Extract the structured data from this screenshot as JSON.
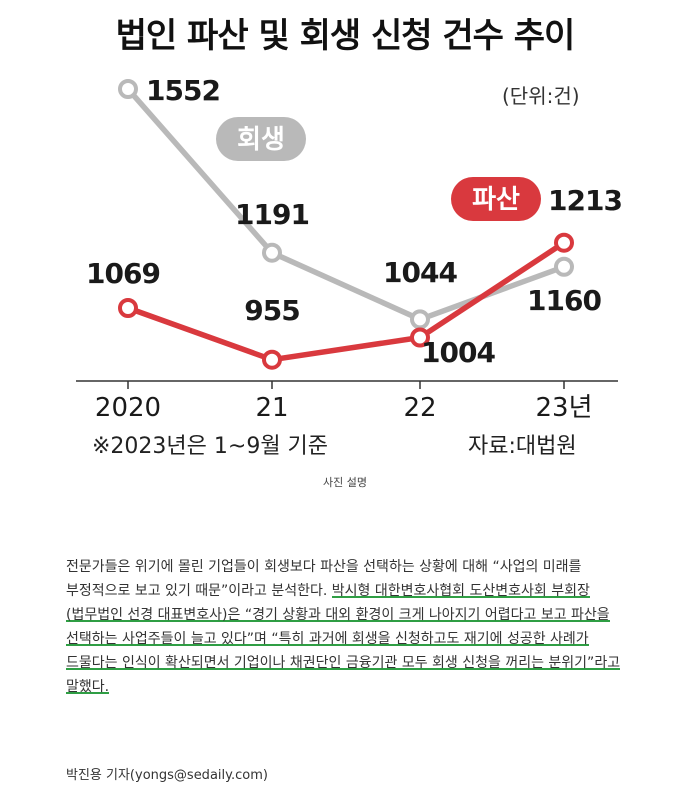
{
  "chart_data": {
    "type": "line",
    "title": "법인 파산 및 회생 신청 건수 추이",
    "unit": "(단위:건)",
    "categories": [
      "2020",
      "21",
      "22",
      "23년"
    ],
    "series": [
      {
        "name": "회생",
        "color": "#b9b9b9",
        "values": [
          1552,
          1191,
          1044,
          1160
        ]
      },
      {
        "name": "파산",
        "color": "#d9393e",
        "values": [
          1069,
          955,
          1004,
          1213
        ]
      }
    ],
    "value_labels": {
      "회생": [
        "1552",
        "1191",
        "1044",
        "1160"
      ],
      "파산": [
        "1069",
        "955",
        "1004",
        "1213"
      ]
    },
    "note": "※2023년은 1~9월 기준",
    "source": "자료:대법원",
    "grid": false
  },
  "caption": "사진 설명",
  "article": {
    "text_before": "전문가들은 위기에 몰린 기업들이 회생보다 파산을 선택하는 상황에 대해 “사업의 미래를 부정적으로 보고 있기 때문”이라고 분석한다. ",
    "highlighted": "박시형 대한변호사협회 도산변호사회 부회장(법무법인 선경 대표변호사)은 “경기 상황과 대외 환경이 크게 나아지기 어렵다고 보고 파산을 선택하는 사업주들이 늘고 있다”며 “특히 과거에 회생을 신청하고도 재기에 성공한 사례가 드물다는 인식이 확산되면서 기업이나 채권단인 금융기관 모두 회생 신청을 꺼리는 분위기”라고 말했다."
  },
  "byline": "박진용 기자(yongs@sedaily.com)"
}
